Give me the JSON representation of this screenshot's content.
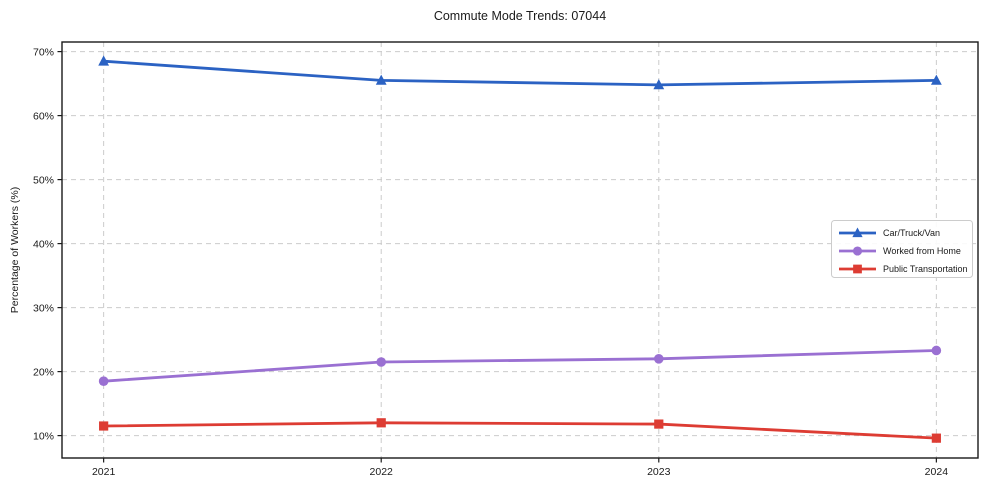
{
  "chart_data": {
    "type": "line",
    "title": "Commute Mode Trends: 07044",
    "xlabel": "",
    "ylabel": "Percentage of Workers (%)",
    "x": [
      2021,
      2022,
      2023,
      2024
    ],
    "x_tick_labels": [
      "2021",
      "2022",
      "2023",
      "2024"
    ],
    "yticks": [
      10,
      20,
      30,
      40,
      50,
      60,
      70
    ],
    "y_tick_labels": [
      "10%",
      "20%",
      "30%",
      "40%",
      "50%",
      "60%",
      "70%"
    ],
    "ylim": [
      6.5,
      71.5
    ],
    "xlim": [
      2020.85,
      2024.15
    ],
    "grid": true,
    "grid_style": "dashed",
    "legend_position": "right-middle",
    "series": [
      {
        "name": "Car/Truck/Van",
        "marker": "triangle",
        "color": "#2b62c3",
        "values": [
          68.5,
          65.5,
          64.8,
          65.5
        ]
      },
      {
        "name": "Worked from Home",
        "marker": "circle",
        "color": "#9a70d2",
        "values": [
          18.5,
          21.5,
          22.0,
          23.3
        ]
      },
      {
        "name": "Public Transportation",
        "marker": "square",
        "color": "#dd3c33",
        "values": [
          11.5,
          12.0,
          11.8,
          9.6
        ]
      }
    ]
  },
  "colors": {
    "background": "#ffffff",
    "grid": "#cccccc",
    "spine": "#1a1a1a",
    "text": "#1a1a1a",
    "legend_border": "#cccccc",
    "legend_fill": "#ffffff"
  }
}
